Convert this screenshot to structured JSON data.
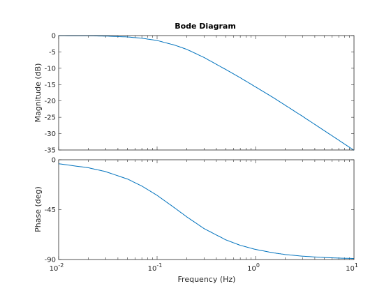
{
  "chart_data": [
    {
      "type": "line",
      "title": "Bode Diagram",
      "xlabel": "",
      "ylabel": "Magnitude (dB)",
      "xscale": "log",
      "xlim": [
        0.01,
        10
      ],
      "ylim": [
        -35,
        0
      ],
      "yticks": [
        0,
        -5,
        -10,
        -15,
        -20,
        -25,
        -30,
        -35
      ],
      "ytick_labels": [
        "0",
        "-5",
        "-10",
        "-15",
        "-20",
        "-25",
        "-30",
        "-35"
      ],
      "series": [
        {
          "color": "#0072bd",
          "x": [
            0.01,
            0.02,
            0.03,
            0.05,
            0.07,
            0.1,
            0.15,
            0.2,
            0.3,
            0.5,
            0.7,
            1,
            1.5,
            2,
            3,
            5,
            7,
            10
          ],
          "y": [
            -0.02,
            -0.07,
            -0.15,
            -0.42,
            -0.8,
            -1.5,
            -2.9,
            -4.2,
            -6.7,
            -10.4,
            -12.9,
            -15.7,
            -18.9,
            -21.3,
            -24.7,
            -29.1,
            -32.0,
            -35.1
          ]
        }
      ]
    },
    {
      "type": "line",
      "title": "",
      "xlabel": "Frequency  (Hz)",
      "ylabel": "Phase (deg)",
      "xscale": "log",
      "xlim": [
        0.01,
        10
      ],
      "ylim": [
        -90,
        0
      ],
      "yticks": [
        0,
        -45,
        -90
      ],
      "ytick_labels": [
        "0",
        "-45",
        "-90"
      ],
      "xticks": [
        0.01,
        0.1,
        1,
        10
      ],
      "xtick_labels": [
        {
          "base": "10",
          "exp": "-2"
        },
        {
          "base": "10",
          "exp": "-1"
        },
        {
          "base": "10",
          "exp": "0"
        },
        {
          "base": "10",
          "exp": "1"
        }
      ],
      "series": [
        {
          "color": "#0072bd",
          "x": [
            0.01,
            0.02,
            0.03,
            0.05,
            0.07,
            0.1,
            0.15,
            0.2,
            0.3,
            0.5,
            0.7,
            1,
            1.5,
            2,
            3,
            5,
            7,
            10
          ],
          "y": [
            -3.6,
            -7.2,
            -10.7,
            -17.4,
            -23.7,
            -32.1,
            -43.3,
            -51.5,
            -62.1,
            -72.3,
            -77.2,
            -80.9,
            -83.9,
            -85.5,
            -87.0,
            -88.2,
            -88.7,
            -89.1
          ]
        }
      ]
    }
  ]
}
